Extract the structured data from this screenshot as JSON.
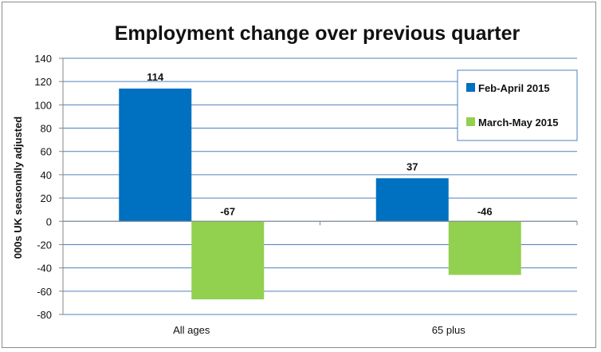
{
  "chart_data": {
    "type": "bar",
    "title": "Employment change over previous quarter",
    "xlabel": "",
    "ylabel": "000s UK seasonally adjusted",
    "categories": [
      "All ages",
      "65 plus"
    ],
    "series": [
      {
        "name": "Feb-April 2015",
        "values": [
          114,
          37
        ],
        "color": "#0070C0"
      },
      {
        "name": "March-May 2015",
        "values": [
          -67,
          -46
        ],
        "color": "#92D050"
      }
    ],
    "ylim": [
      -80,
      140
    ],
    "yticks": [
      140,
      120,
      100,
      80,
      60,
      40,
      20,
      0,
      -20,
      -40,
      -60,
      -80
    ],
    "grid": true,
    "legend_position": "top-right",
    "gridline_color": "#4F81BD"
  }
}
